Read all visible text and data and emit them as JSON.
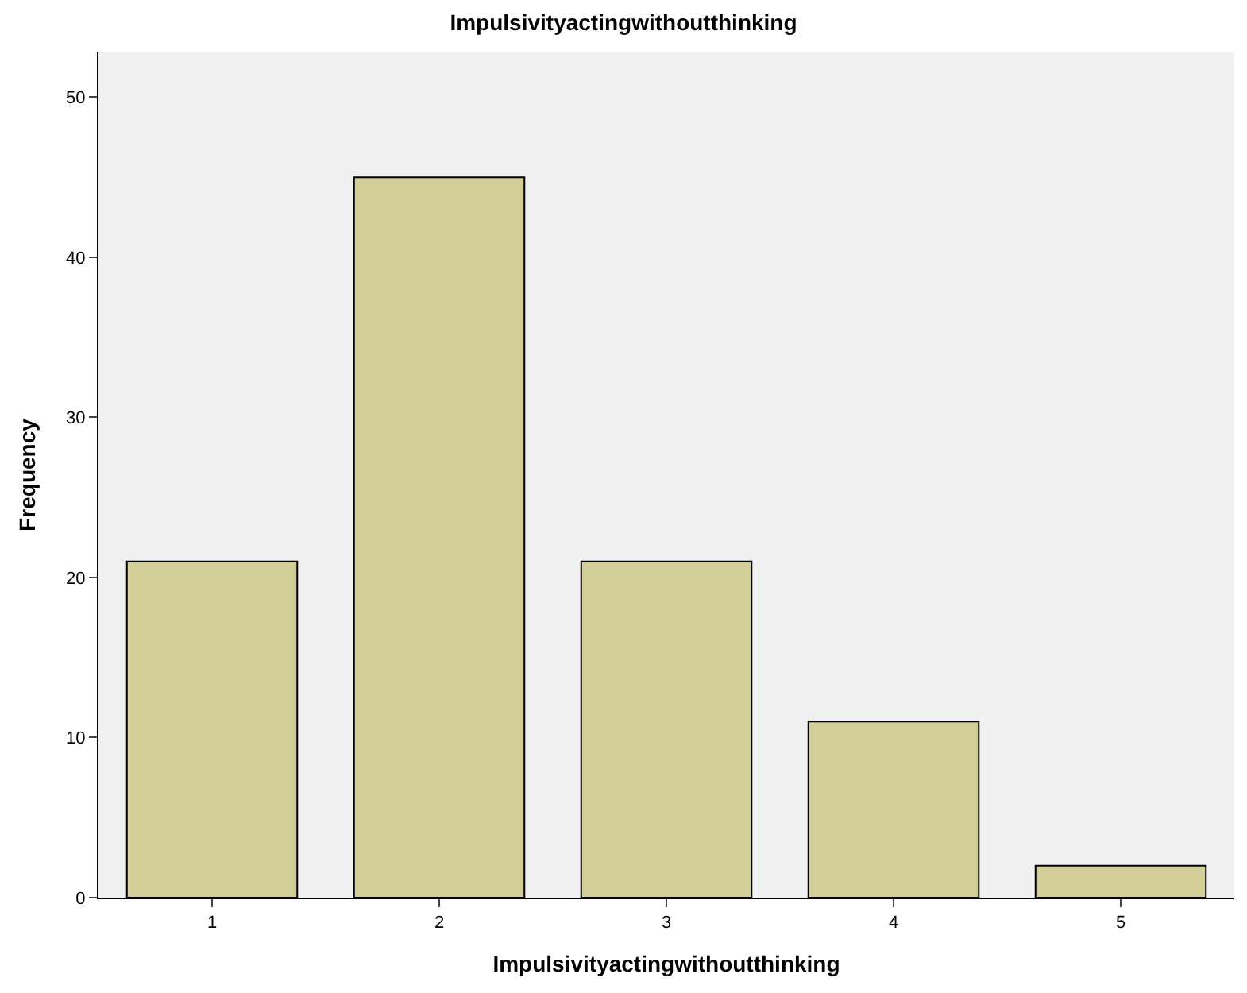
{
  "chart_data": {
    "type": "bar",
    "title": "Impulsivityactingwithoutthinking",
    "xlabel": "Impulsivityactingwithoutthinking",
    "ylabel": "Frequency",
    "categories": [
      "1",
      "2",
      "3",
      "4",
      "5"
    ],
    "values": [
      21,
      45,
      21,
      11,
      2
    ],
    "color": "#d3ce97",
    "ylim": [
      0,
      52.8
    ],
    "yticks": [
      0,
      10,
      20,
      30,
      40,
      50
    ],
    "grid": false
  }
}
